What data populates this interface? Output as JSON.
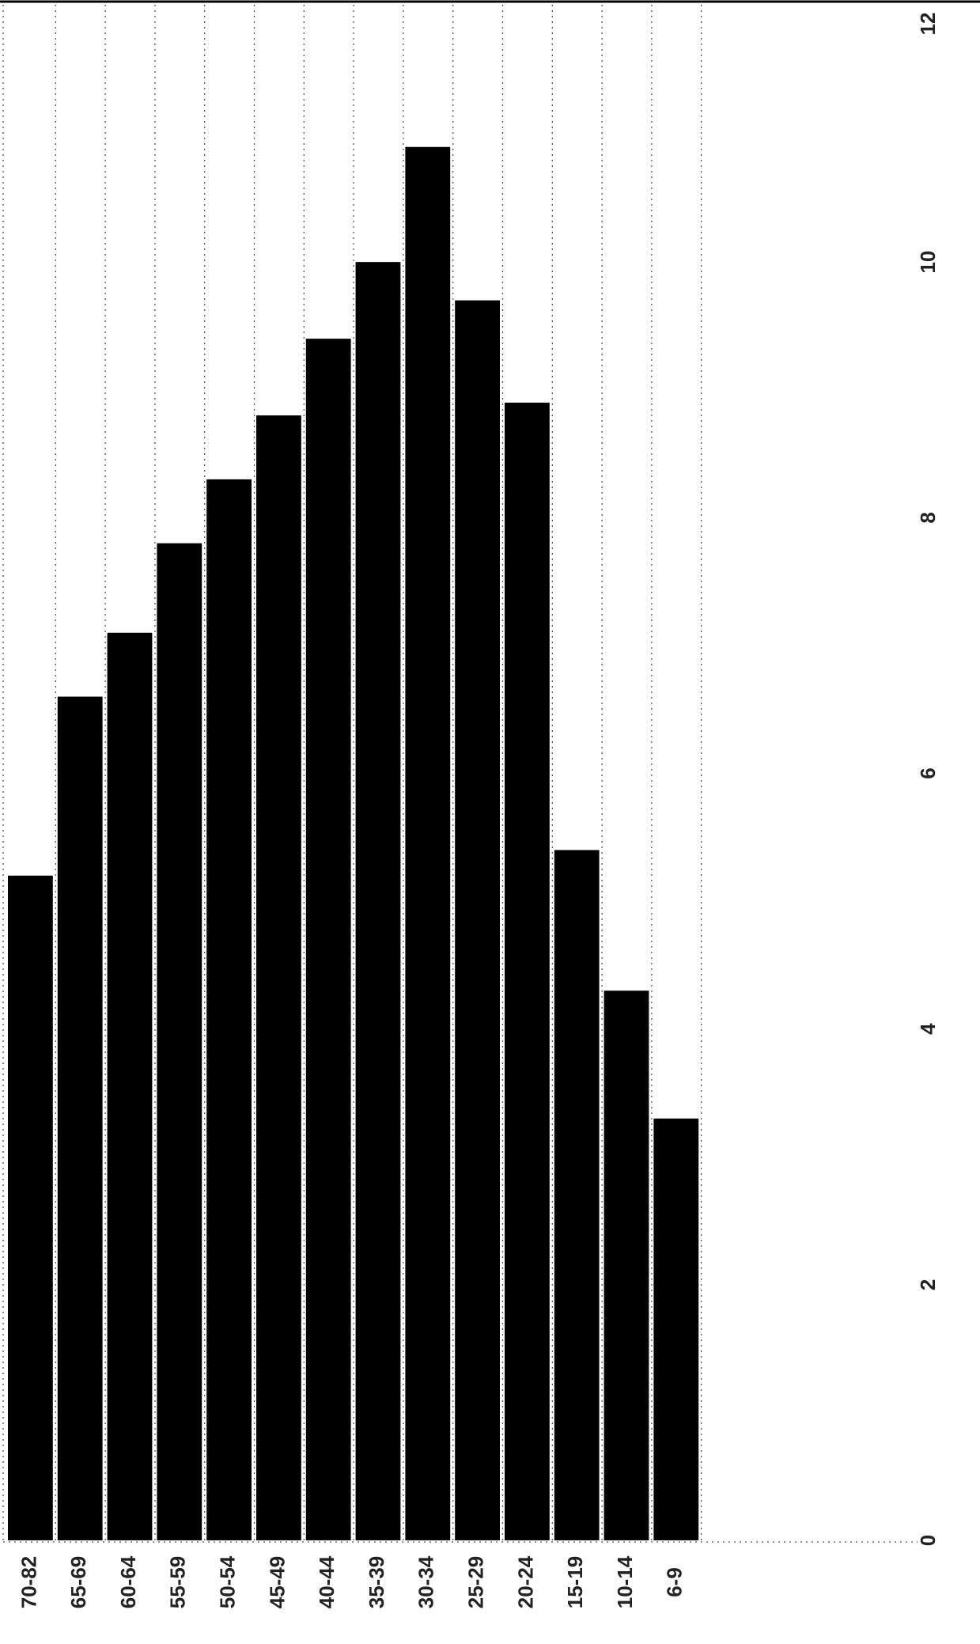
{
  "chart_data": {
    "type": "bar",
    "orientation": "horizontal-rotated",
    "title": "",
    "xlabel": "",
    "ylabel": "",
    "categories": [
      "70-82",
      "65-69",
      "60-64",
      "55-59",
      "50-54",
      "45-49",
      "40-44",
      "35-39",
      "30-34",
      "25-29",
      "20-24",
      "15-19",
      "10-14",
      "6-9"
    ],
    "values": [
      5.2,
      6.6,
      7.1,
      7.8,
      8.3,
      8.8,
      9.4,
      10.0,
      10.9,
      9.7,
      8.9,
      5.4,
      4.3,
      3.3
    ],
    "ylim": [
      0,
      12
    ],
    "ticks": [
      "0",
      "2",
      "4",
      "6",
      "8",
      "10",
      "12"
    ],
    "grid": true,
    "bar_color": "#000000"
  }
}
